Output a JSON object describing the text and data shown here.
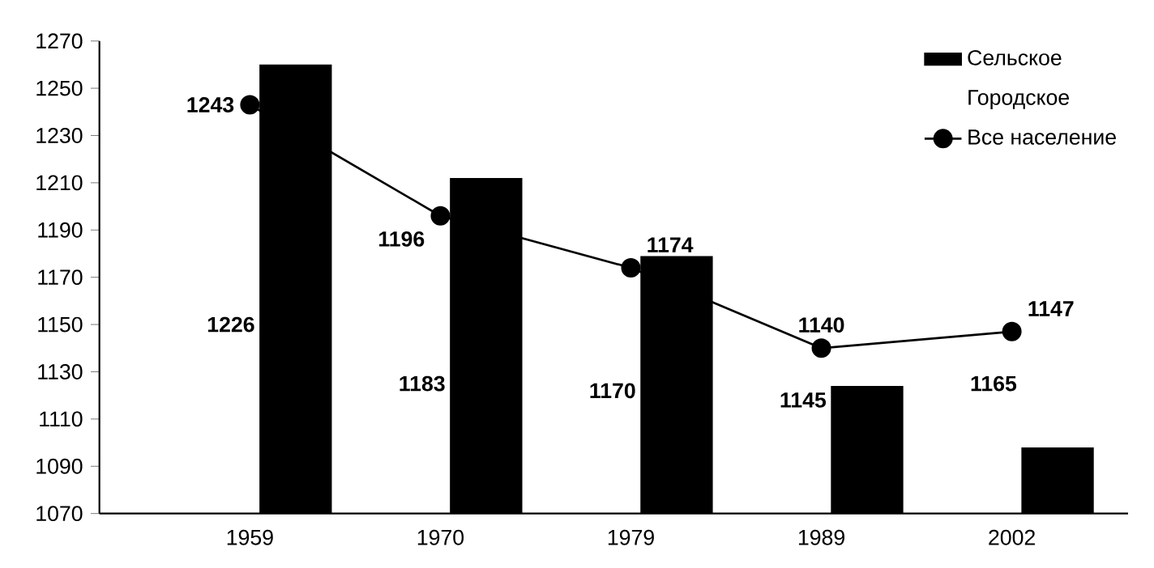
{
  "chart_data": {
    "type": "bar",
    "categories": [
      "1959",
      "1970",
      "1979",
      "1989",
      "2002"
    ],
    "series": [
      {
        "name": "Сельское",
        "color": "#000000",
        "values": [
          1260,
          1212,
          1179,
          1124,
          1098
        ]
      },
      {
        "name": "Все население",
        "type": "line",
        "color": "#000000",
        "marker": "circle",
        "line_style": "solid",
        "values": [
          1243,
          1196,
          1174,
          1140,
          1147
        ],
        "value_labels": [
          "1243",
          "1196",
          "1174",
          "1140",
          "1147"
        ]
      }
    ],
    "annotations": [
      "Городское",
      "1226",
      "1183",
      "1170",
      "1145",
      "1165"
    ],
    "ylim": [
      1070,
      1270
    ],
    "yticks": [
      1070,
      1090,
      1110,
      1130,
      1150,
      1170,
      1190,
      1210,
      1230,
      1250,
      1270
    ],
    "legend": "top right",
    "grid": false
  }
}
